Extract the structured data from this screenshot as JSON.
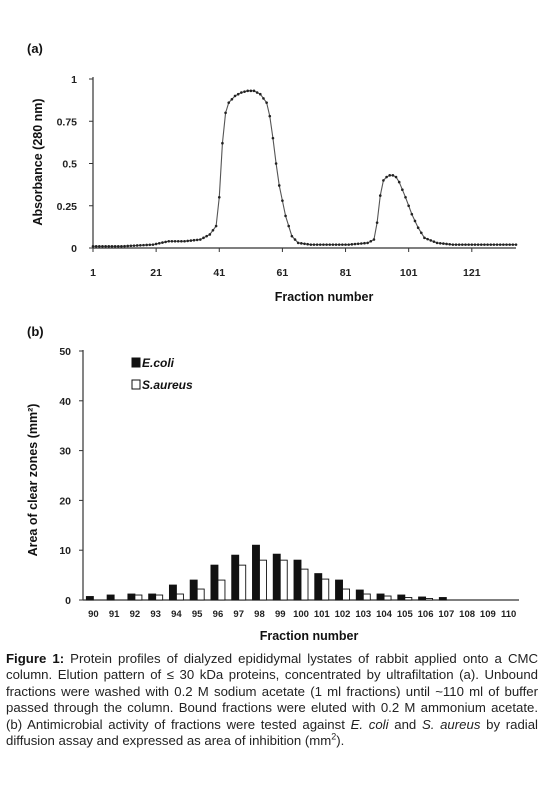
{
  "chart_data": [
    {
      "type": "line",
      "panel_label": "(a)",
      "xlabel": "Fraction number",
      "ylabel": "Absorbance (280 nm)",
      "xlim": [
        1,
        135
      ],
      "ylim": [
        0,
        1
      ],
      "x_ticks": [
        "1",
        "21",
        "41",
        "61",
        "81",
        "101",
        "121"
      ],
      "y_ticks": [
        "0",
        "0.25",
        "0.5",
        "0.75",
        "1"
      ],
      "series": [
        {
          "x": [
            1,
            10,
            20,
            25,
            30,
            35,
            38,
            40,
            41,
            42,
            43,
            44,
            46,
            48,
            50,
            52,
            54,
            56,
            57,
            58,
            59,
            60,
            62,
            64,
            66,
            70,
            76,
            82,
            88,
            90,
            91,
            92,
            93,
            94,
            95,
            96,
            97,
            98,
            100,
            102,
            104,
            106,
            110,
            115,
            120,
            125,
            130,
            135
          ],
          "y": [
            0.01,
            0.01,
            0.02,
            0.04,
            0.04,
            0.05,
            0.08,
            0.13,
            0.3,
            0.62,
            0.8,
            0.86,
            0.9,
            0.92,
            0.93,
            0.93,
            0.91,
            0.86,
            0.78,
            0.65,
            0.5,
            0.37,
            0.19,
            0.07,
            0.03,
            0.02,
            0.02,
            0.02,
            0.03,
            0.05,
            0.15,
            0.31,
            0.4,
            0.42,
            0.43,
            0.43,
            0.42,
            0.39,
            0.3,
            0.2,
            0.12,
            0.06,
            0.03,
            0.02,
            0.02,
            0.02,
            0.02,
            0.02
          ]
        }
      ]
    },
    {
      "type": "bar",
      "panel_label": "(b)",
      "xlabel": "Fraction number",
      "ylabel": "Area of clear zones (mm²)",
      "ylim": [
        0,
        50
      ],
      "y_ticks": [
        "0",
        "10",
        "20",
        "30",
        "40",
        "50"
      ],
      "categories": [
        "90",
        "91",
        "92",
        "93",
        "94",
        "95",
        "96",
        "97",
        "98",
        "99",
        "100",
        "101",
        "102",
        "103",
        "104",
        "105",
        "106",
        "107",
        "108",
        "109",
        "110"
      ],
      "legend_position": "top-left",
      "series": [
        {
          "name": "E.coli",
          "color": "#111111",
          "values": [
            0.7,
            1.0,
            1.2,
            1.2,
            3.0,
            4.0,
            7.0,
            9.0,
            11.0,
            9.2,
            8.0,
            5.3,
            4.0,
            2.0,
            1.2,
            1.0,
            0.6,
            0.5,
            0,
            0,
            0
          ]
        },
        {
          "name": "S.aureus",
          "color": "#ffffff",
          "values": [
            0,
            0,
            1.0,
            1.0,
            1.2,
            2.2,
            4.0,
            7.0,
            8.0,
            8.0,
            6.2,
            4.2,
            2.2,
            1.2,
            0.8,
            0.5,
            0.3,
            0,
            0,
            0,
            0
          ]
        }
      ]
    }
  ],
  "caption": {
    "label": "Figure 1:",
    "p1": " Protein profiles of dialyzed epididymal lystates of rabbit applied onto a CMC column. Elution pattern of ≤ 30 kDa proteins, concentrated by ultrafiltation (a). Unbound fractions were washed with 0.2 M sodium acetate (1 ml fractions) until ~110 ml of buffer passed through the column. Bound fractions were eluted with 0.2 M ammonium acetate. (b) Antimicrobial activity of fractions were tested against ",
    "org1": "E. coli",
    "p2": " and ",
    "org2": "S. aureus",
    "p3": "  by radial diffusion assay and expressed as area of inhibition (mm",
    "sup": "2",
    "p4": ")."
  }
}
